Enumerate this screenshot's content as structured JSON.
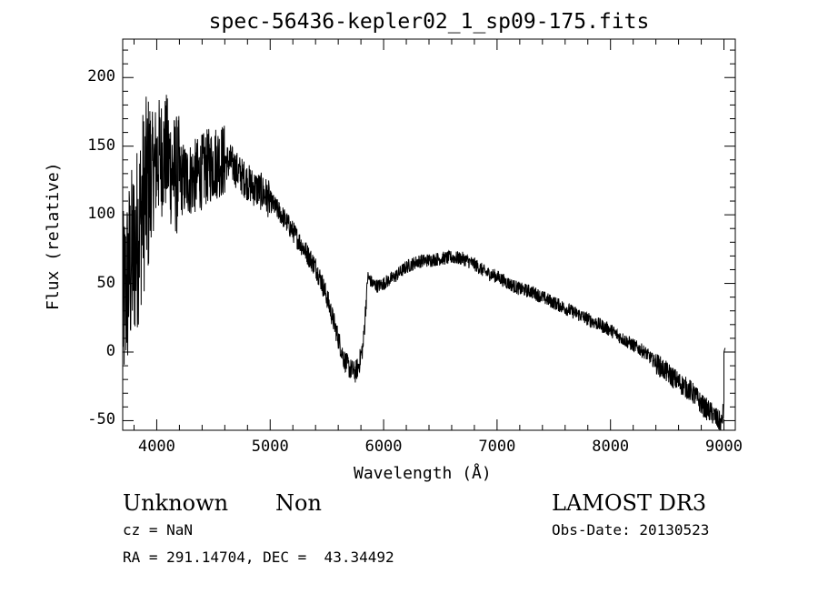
{
  "chart_data": {
    "type": "line",
    "title": "spec-56436-kepler02_1_sp09-175.fits",
    "xlabel": "Wavelength (Å)",
    "ylabel": "Flux (relative)",
    "xlim": [
      3700,
      9100
    ],
    "ylim": [
      -57,
      228
    ],
    "xticks": [
      4000,
      5000,
      6000,
      7000,
      8000,
      9000
    ],
    "yticks": [
      -50,
      0,
      50,
      100,
      150,
      200
    ],
    "grid": false,
    "legend": "none",
    "line_color": "#000000",
    "series": [
      {
        "x": [
          3700,
          3760,
          3820,
          3880,
          3940,
          4000,
          4080,
          4150,
          4250,
          4350,
          4450,
          4550,
          4650,
          4750,
          4850,
          4900,
          4950,
          5000,
          5100,
          5200,
          5300,
          5400,
          5450,
          5500,
          5550,
          5600,
          5650,
          5700,
          5750,
          5780,
          5820,
          5840,
          5860,
          5900,
          5950,
          6000,
          6100,
          6200,
          6300,
          6400,
          6500,
          6600,
          6700,
          6800,
          6900,
          7000,
          7100,
          7200,
          7300,
          7400,
          7500,
          7600,
          7700,
          7800,
          7900,
          8000,
          8100,
          8200,
          8300,
          8400,
          8500,
          8600,
          8700,
          8750,
          8800,
          8850,
          8900,
          8950,
          8980,
          9000,
          9020
        ],
        "y": [
          30,
          60,
          80,
          110,
          125,
          140,
          145,
          130,
          125,
          128,
          135,
          140,
          138,
          128,
          120,
          118,
          115,
          110,
          100,
          88,
          75,
          62,
          52,
          40,
          25,
          10,
          -5,
          -12,
          -15,
          -10,
          5,
          30,
          55,
          50,
          48,
          50,
          55,
          62,
          66,
          67,
          68,
          69,
          68,
          64,
          58,
          55,
          50,
          46,
          44,
          40,
          36,
          32,
          28,
          24,
          20,
          16,
          10,
          5,
          0,
          -8,
          -15,
          -22,
          -28,
          -32,
          -38,
          -42,
          -45,
          -50,
          -52,
          -40,
          0
        ]
      }
    ]
  },
  "footer": {
    "object_class": "Unknown",
    "object_subclass": "Non",
    "survey": "LAMOST DR3",
    "cz": "cz = NaN",
    "obs_date": "Obs-Date: 20130523",
    "coords": "RA = 291.14704, DEC =  43.34492"
  }
}
